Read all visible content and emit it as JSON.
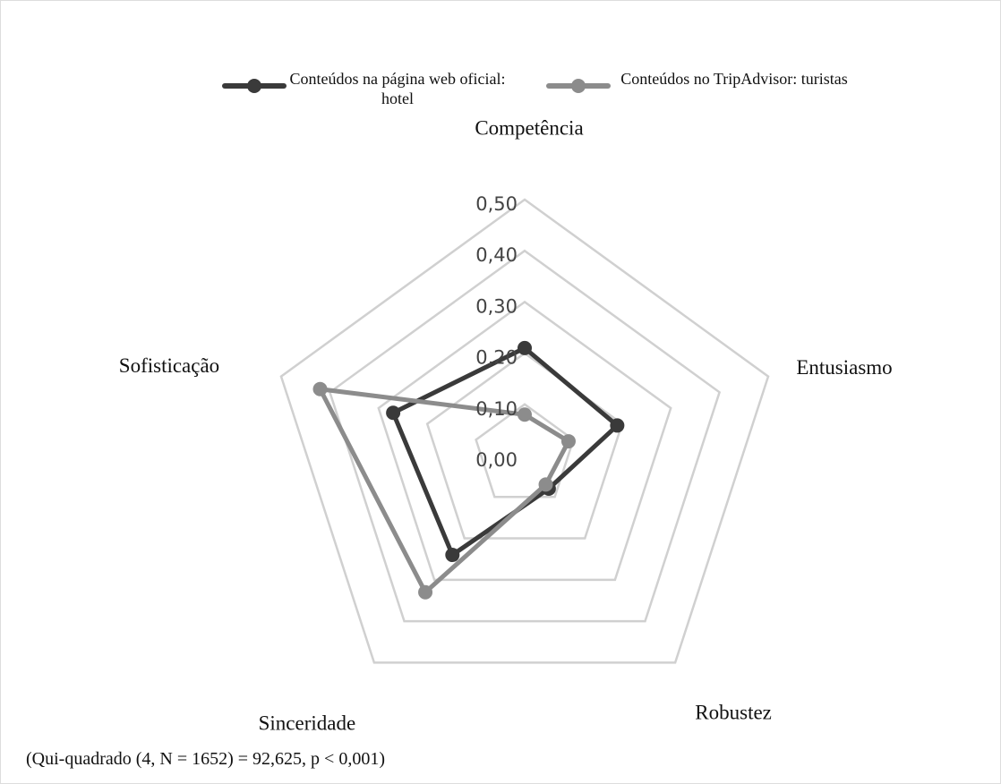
{
  "chart_data": {
    "type": "radar",
    "categories": [
      "Competência",
      "Entusiasmo",
      "Robustez",
      "Sinceridade",
      "Sofisticação"
    ],
    "series": [
      {
        "name": "Conteúdos na página web oficial: hotel",
        "color": "#3a3a3a",
        "values": [
          0.21,
          0.19,
          0.08,
          0.24,
          0.27
        ]
      },
      {
        "name": "Conteúdos no TripAdvisor: turistas",
        "color": "#8c8c8c",
        "values": [
          0.08,
          0.09,
          0.07,
          0.33,
          0.42
        ]
      }
    ],
    "rlim": [
      0,
      0.5
    ],
    "rticks": [
      {
        "value": 0,
        "label": "0,00"
      },
      {
        "value": 0.1,
        "label": "0,10"
      },
      {
        "value": 0.2,
        "label": "0,20"
      },
      {
        "value": 0.3,
        "label": "0,30"
      },
      {
        "value": 0.4,
        "label": "0,40"
      },
      {
        "value": 0.5,
        "label": "0,50"
      }
    ],
    "grid": true,
    "legend": "top",
    "note": "(Qui-quadrado (4, N = 1652) = 92,625, p < 0,001)"
  }
}
